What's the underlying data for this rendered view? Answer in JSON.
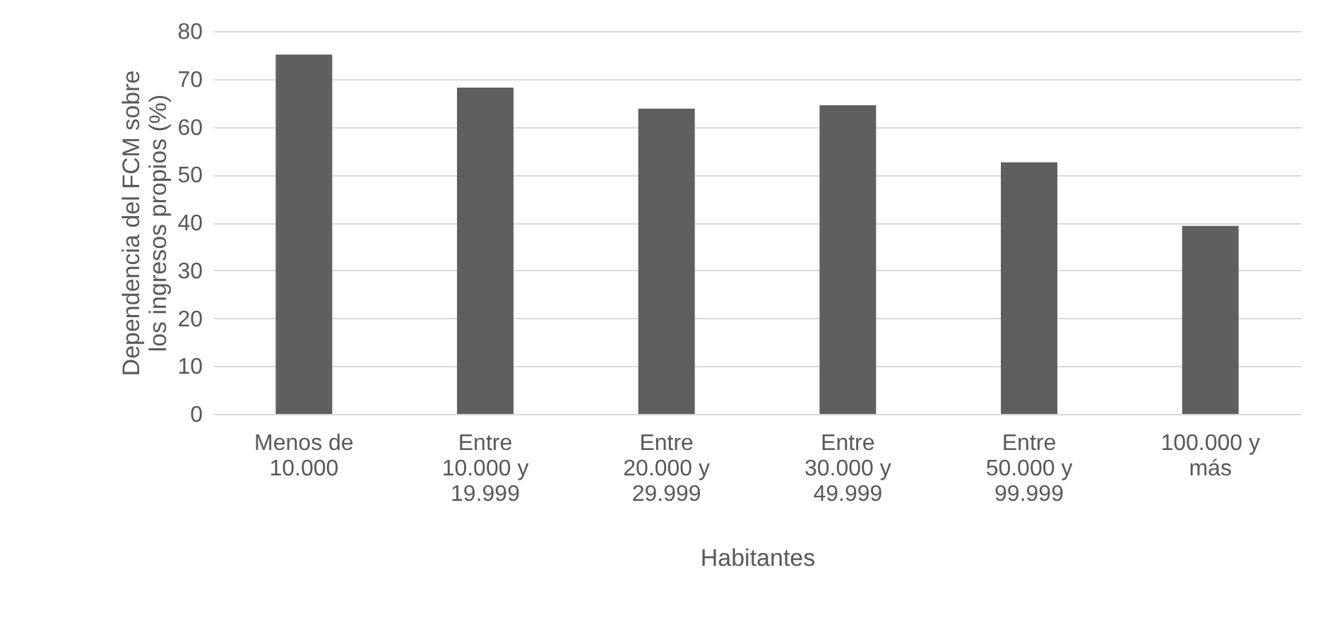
{
  "chart_data": {
    "type": "bar",
    "categories": [
      "Menos de 10.000",
      "Entre 10.000 y 19.999",
      "Entre 20.000 y 29.999",
      "Entre 30.000 y 49.999",
      "Entre 50.000 y 99.999",
      "100.000 y más"
    ],
    "values": [
      75.1,
      68.2,
      63.8,
      64.5,
      52.6,
      39.3
    ],
    "color": "#5f5f5f",
    "xlabel": "Habitantes",
    "ylabel": "Dependencia del FCM sobre los ingresos propios (%)",
    "ylim": [
      0,
      80
    ],
    "yticks": [
      0,
      10,
      20,
      30,
      40,
      50,
      60,
      70,
      80
    ],
    "grid": "y"
  }
}
